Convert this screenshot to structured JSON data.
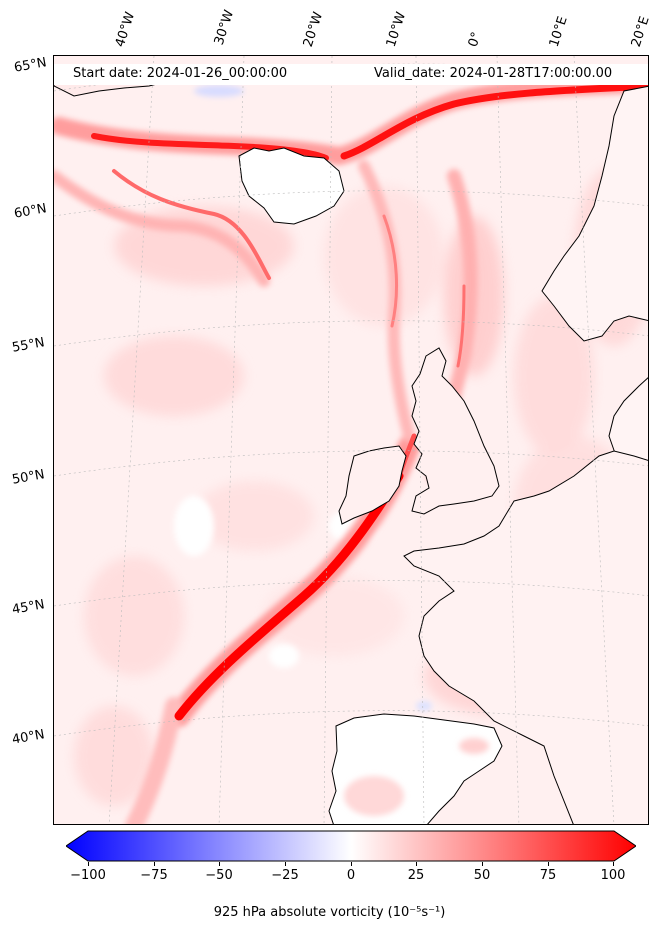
{
  "header": {
    "start_date": "Start date: 2024-01-26_00:00:00",
    "valid_date": "Valid_date: 2024-01-28T17:00:00.00"
  },
  "lon_labels": [
    "40°W",
    "30°W",
    "20°W",
    "10°W",
    "0°",
    "10°E",
    "20°E"
  ],
  "lat_labels": [
    "65°N",
    "60°N",
    "55°N",
    "50°N",
    "45°N",
    "40°N"
  ],
  "colorbar": {
    "label": "925 hPa absolute vorticity (10⁻⁵s⁻¹)",
    "ticks": [
      "−100",
      "−75",
      "−50",
      "−25",
      "0",
      "25",
      "50",
      "75",
      "100"
    ],
    "min": -100,
    "max": 100,
    "negative_color": "#0000ff",
    "zero_color": "#ffffff",
    "positive_color": "#ff0000"
  },
  "colors": {
    "background_field": "#fff1f1",
    "vorticity_band": "#ff0000",
    "coastline": "#000000",
    "land_low": "#ffffff"
  }
}
